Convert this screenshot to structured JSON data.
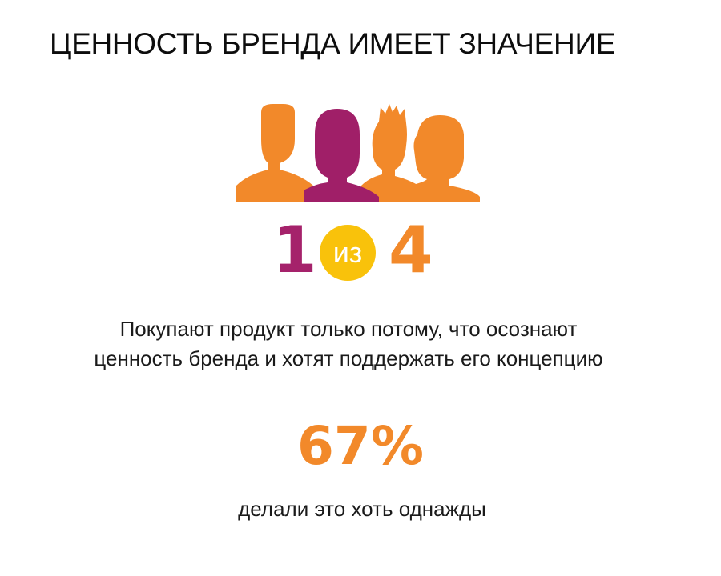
{
  "title": "ЦЕННОСТЬ БРЕНДА ИМЕЕТ ЗНАЧЕНИЕ",
  "illustration": {
    "icon": "people-group-icon",
    "highlighted_person": 2,
    "total_people": 4,
    "colors": {
      "orange": "#f2892a",
      "purple": "#a01f68"
    }
  },
  "ratio": {
    "numerator": "1",
    "connector": "из",
    "denominator": "4",
    "colors": {
      "numerator": "#a5226b",
      "connector_circle": "#f9c20b",
      "denominator": "#f2892a"
    }
  },
  "description": {
    "line1": "Покупают продукт только потому, что осознают",
    "line2": "ценность бренда и хотят поддержать его концепцию"
  },
  "stat": {
    "value": "67%",
    "color": "#f2892a",
    "caption": "делали это хоть однажды"
  }
}
